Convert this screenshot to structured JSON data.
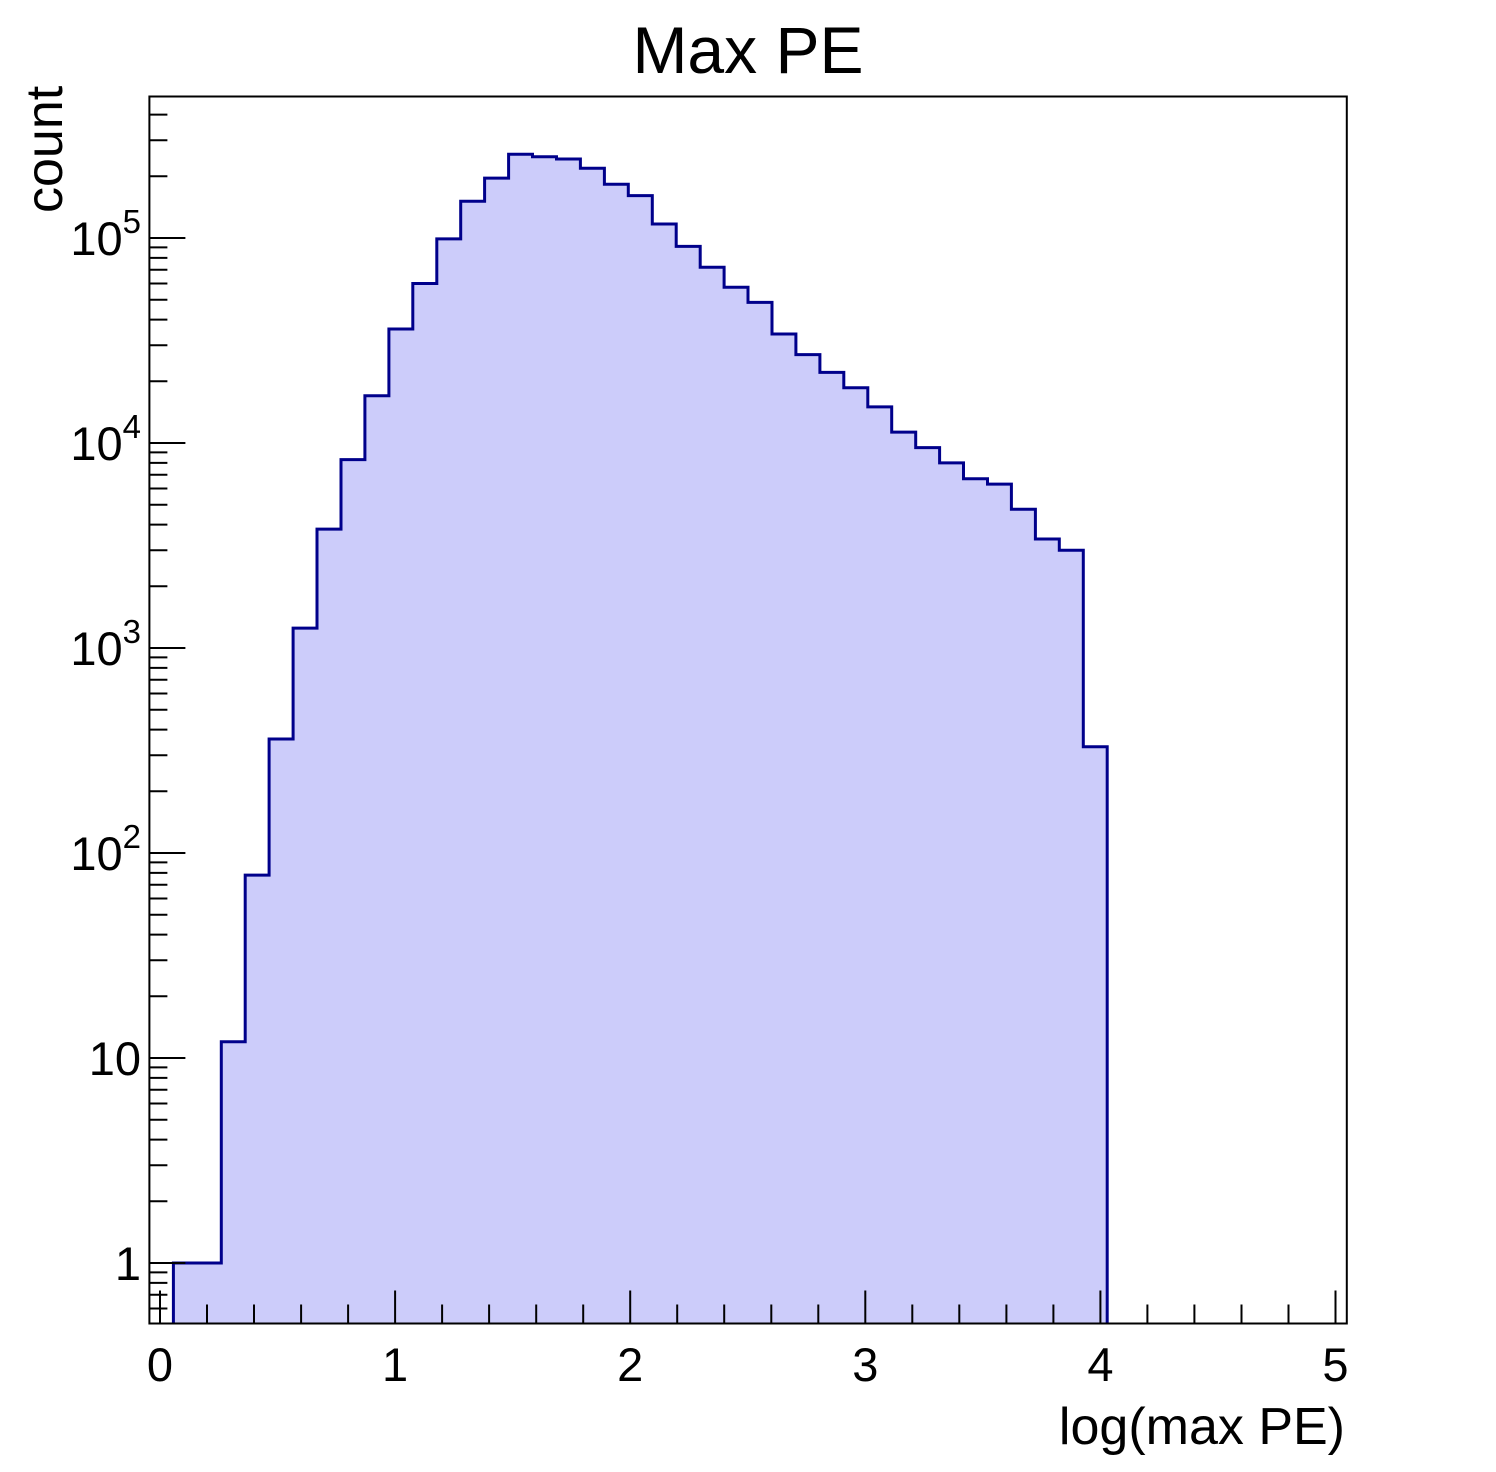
{
  "chart_data": {
    "type": "bar",
    "subtype": "histogram-step-filled",
    "title": "Max PE",
    "xlabel": "log(max PE)",
    "ylabel": "count",
    "yscale": "log",
    "xlim": [
      -0.045,
      5.048
    ],
    "ylim": [
      0.507,
      490000
    ],
    "bin_start": -0.045,
    "bin_width": 0.10185,
    "counts": [
      0,
      1,
      1,
      12,
      78,
      360,
      1250,
      3800,
      8300,
      17000,
      36000,
      60000,
      99000,
      151000,
      196000,
      256000,
      249000,
      243000,
      219000,
      183000,
      161000,
      117000,
      91000,
      72000,
      57500,
      48500,
      34000,
      27000,
      22100,
      18600,
      15000,
      11300,
      9500,
      8000,
      6700,
      6300,
      4750,
      3400,
      3000,
      330,
      0,
      0,
      0,
      0,
      0,
      0,
      0,
      0,
      0,
      0
    ],
    "x_major_ticks": [
      0,
      1,
      2,
      3,
      4,
      5
    ],
    "x_tick_labels": [
      "0",
      "1",
      "2",
      "3",
      "4",
      "5"
    ],
    "x_minor_tick_step": 0.2,
    "y_major_ticks": [
      {
        "value": 1,
        "base": "1",
        "exp": ""
      },
      {
        "value": 10,
        "base": "10",
        "exp": ""
      },
      {
        "value": 100,
        "base": "10",
        "exp": "2"
      },
      {
        "value": 1000,
        "base": "10",
        "exp": "3"
      },
      {
        "value": 10000,
        "base": "10",
        "exp": "4"
      },
      {
        "value": 100000,
        "base": "10",
        "exp": "5"
      }
    ],
    "grid": false,
    "legend": null,
    "colors": {
      "fill": "#ccccfa",
      "outline": "#00008b",
      "axis": "#000000",
      "background": "#ffffff"
    }
  }
}
